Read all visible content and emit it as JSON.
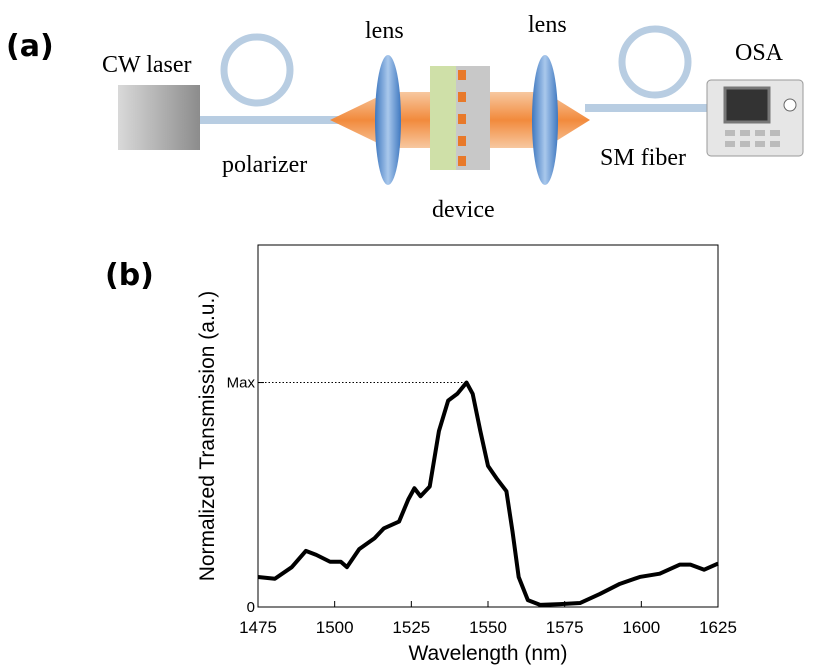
{
  "panel_a": {
    "label": "(a)",
    "components": {
      "laser": "CW laser",
      "lens_1": "lens",
      "lens_2": "lens",
      "analyzer": "OSA",
      "polarizer": "polarizer",
      "fiber": "SM fiber",
      "device": "device"
    }
  },
  "panel_b": {
    "label": "(b)"
  },
  "chart_data": {
    "type": "line",
    "x_label": "Wavelength (nm)",
    "y_label": "Normalized Transmission (a.u.)",
    "xlim": [
      1475,
      1625
    ],
    "xticks": [
      1475,
      1500,
      1525,
      1550,
      1575,
      1600,
      1625
    ],
    "ylim": [
      0,
      1
    ],
    "yticks": [
      0,
      {
        "value": 0.62,
        "label": "Max"
      }
    ],
    "series": [
      {
        "color": "#000000",
        "x": [
          1475,
          1480.5,
          1486,
          1490.6,
          1494,
          1498.5,
          1502,
          1504,
          1508,
          1513,
          1516,
          1521,
          1524,
          1526,
          1528,
          1531,
          1534,
          1537,
          1540,
          1543,
          1545,
          1547.5,
          1550,
          1553,
          1556,
          1558,
          1560,
          1563,
          1567,
          1573.5,
          1580,
          1586.5,
          1593,
          1599.5,
          1606,
          1612.5,
          1616,
          1620.5,
          1625
        ],
        "values": [
          0.083,
          0.078,
          0.11,
          0.155,
          0.144,
          0.125,
          0.125,
          0.11,
          0.16,
          0.19,
          0.217,
          0.236,
          0.297,
          0.328,
          0.306,
          0.333,
          0.486,
          0.57,
          0.589,
          0.62,
          0.589,
          0.486,
          0.39,
          0.353,
          0.32,
          0.208,
          0.083,
          0.019,
          0.006,
          0.008,
          0.011,
          0.036,
          0.064,
          0.083,
          0.092,
          0.117,
          0.117,
          0.103,
          0.12
        ]
      }
    ]
  }
}
